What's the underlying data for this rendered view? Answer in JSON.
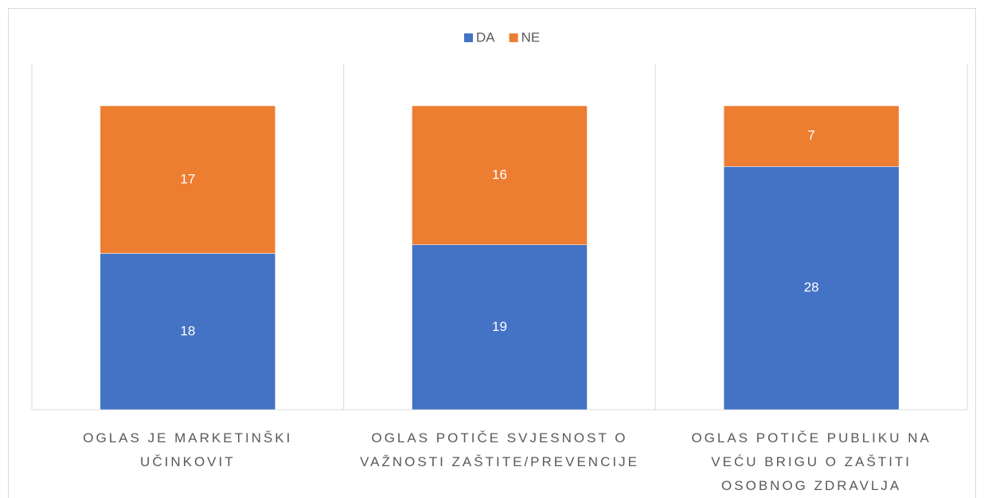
{
  "chart_data": {
    "type": "stacked_bar",
    "categories": [
      "OGLAS JE MARKETINŠKI UČINKOVIT",
      "OGLAS POTIČE SVJESNOST O VAŽNOSTI ZAŠTITE/PREVENCIJE",
      "OGLAS POTIČE PUBLIKU NA VEĆU BRIGU O ZAŠTITI OSOBNOG ZDRAVLJA"
    ],
    "series": [
      {
        "name": "DA",
        "color": "#4472c4",
        "values": [
          18,
          19,
          28
        ]
      },
      {
        "name": "NE",
        "color": "#ed7d31",
        "values": [
          17,
          16,
          7
        ]
      }
    ],
    "ylim": [
      0,
      35
    ],
    "legend": "top"
  }
}
